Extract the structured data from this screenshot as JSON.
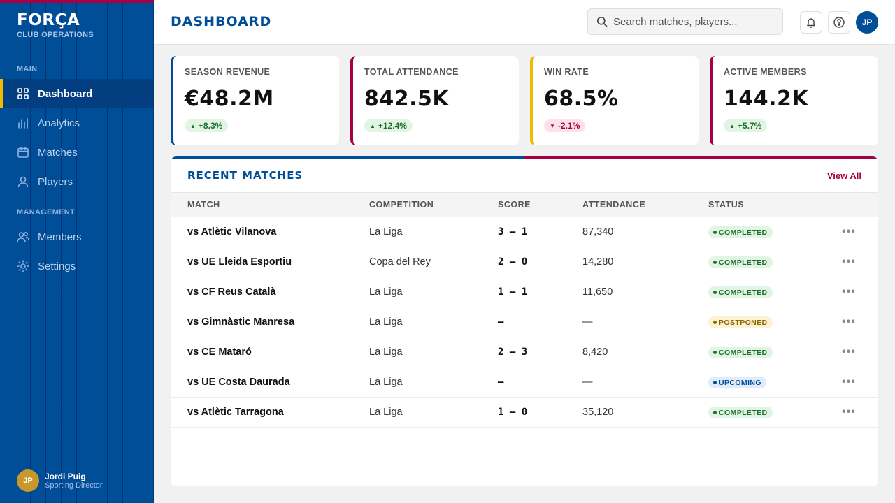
{
  "brand": {
    "name": "FORÇA",
    "subtitle": "CLUB OPERATIONS"
  },
  "sidebar": {
    "sections": [
      {
        "label": "MAIN",
        "items": [
          {
            "label": "Dashboard",
            "icon": "grid-icon",
            "active": true
          },
          {
            "label": "Analytics",
            "icon": "bar-chart-icon",
            "active": false
          },
          {
            "label": "Matches",
            "icon": "calendar-icon",
            "active": false
          },
          {
            "label": "Players",
            "icon": "user-icon",
            "active": false
          }
        ]
      },
      {
        "label": "MANAGEMENT",
        "items": [
          {
            "label": "Members",
            "icon": "users-icon",
            "active": false
          },
          {
            "label": "Settings",
            "icon": "sun-gear-icon",
            "active": false
          }
        ]
      }
    ],
    "user": {
      "initials": "JP",
      "name": "Jordi Puig",
      "role": "Sporting Director"
    }
  },
  "header": {
    "title": "DASHBOARD",
    "search_placeholder": "Search matches, players...",
    "avatar_initials": "JP"
  },
  "cards": [
    {
      "label": "SEASON REVENUE",
      "value": "€48.2M",
      "change": "+8.3%",
      "direction": "up",
      "accent": "#004d98"
    },
    {
      "label": "TOTAL ATTENDANCE",
      "value": "842.5K",
      "change": "+12.4%",
      "direction": "up",
      "accent": "#a50044"
    },
    {
      "label": "WIN RATE",
      "value": "68.5%",
      "change": "-2.1%",
      "direction": "down",
      "accent": "#edbb00"
    },
    {
      "label": "ACTIVE MEMBERS",
      "value": "144.2K",
      "change": "+5.7%",
      "direction": "up",
      "accent": "#a50044"
    }
  ],
  "recent_matches": {
    "title": "RECENT MATCHES",
    "view_all": "View All",
    "columns": [
      "MATCH",
      "COMPETITION",
      "SCORE",
      "ATTENDANCE",
      "STATUS"
    ],
    "rows": [
      {
        "match": "vs Atlètic Vilanova",
        "competition": "La Liga",
        "score": "3 – 1",
        "attendance": "87,340",
        "status": "COMPLETED"
      },
      {
        "match": "vs UE Lleida Esportiu",
        "competition": "Copa del Rey",
        "score": "2 – 0",
        "attendance": "14,280",
        "status": "COMPLETED"
      },
      {
        "match": "vs CF Reus Català",
        "competition": "La Liga",
        "score": "1 – 1",
        "attendance": "11,650",
        "status": "COMPLETED"
      },
      {
        "match": "vs Gimnàstic Manresa",
        "competition": "La Liga",
        "score": "–",
        "attendance": "—",
        "status": "POSTPONED"
      },
      {
        "match": "vs CE Mataró",
        "competition": "La Liga",
        "score": "2 – 3",
        "attendance": "8,420",
        "status": "COMPLETED"
      },
      {
        "match": "vs UE Costa Daurada",
        "competition": "La Liga",
        "score": "–",
        "attendance": "—",
        "status": "UPCOMING"
      },
      {
        "match": "vs Atlètic Tarragona",
        "competition": "La Liga",
        "score": "1 – 0",
        "attendance": "35,120",
        "status": "COMPLETED"
      }
    ]
  }
}
